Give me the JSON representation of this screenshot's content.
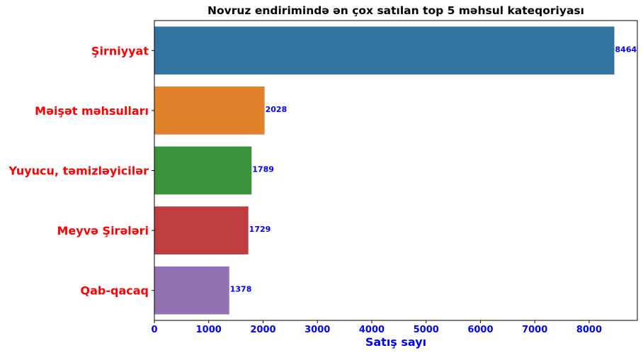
{
  "chart_data": {
    "type": "bar",
    "orientation": "horizontal",
    "title": "Novruz endirimində ən çox satılan top 5 məhsul kateqoriyası",
    "xlabel": "Satış sayı",
    "ylabel": "",
    "categories": [
      "Şirniyyat",
      "Məişət məhsulları",
      "Yuyucu, təmizləyicilər",
      "Meyvə Şirələri",
      "Qab-qacaq"
    ],
    "values": [
      8464,
      2028,
      1789,
      1729,
      1378
    ],
    "data_labels": [
      "8464",
      "2028",
      "1789",
      "1729",
      "1378"
    ],
    "bar_colors": [
      "#3274a1",
      "#e1812c",
      "#3a923a",
      "#c03d3e",
      "#9372b2"
    ],
    "xlim": [
      0,
      8887
    ],
    "xticks": [
      0,
      1000,
      2000,
      3000,
      4000,
      5000,
      6000,
      7000,
      8000
    ],
    "xtick_labels": [
      "0",
      "1000",
      "2000",
      "3000",
      "4000",
      "5000",
      "6000",
      "7000",
      "8000"
    ],
    "grid": false,
    "legend": "none",
    "colors": {
      "category_labels": "#ff0000",
      "tick_labels": "#0000ff",
      "axis_title": "#0000ff",
      "data_labels": "#0000ff",
      "title": "#000000"
    }
  }
}
